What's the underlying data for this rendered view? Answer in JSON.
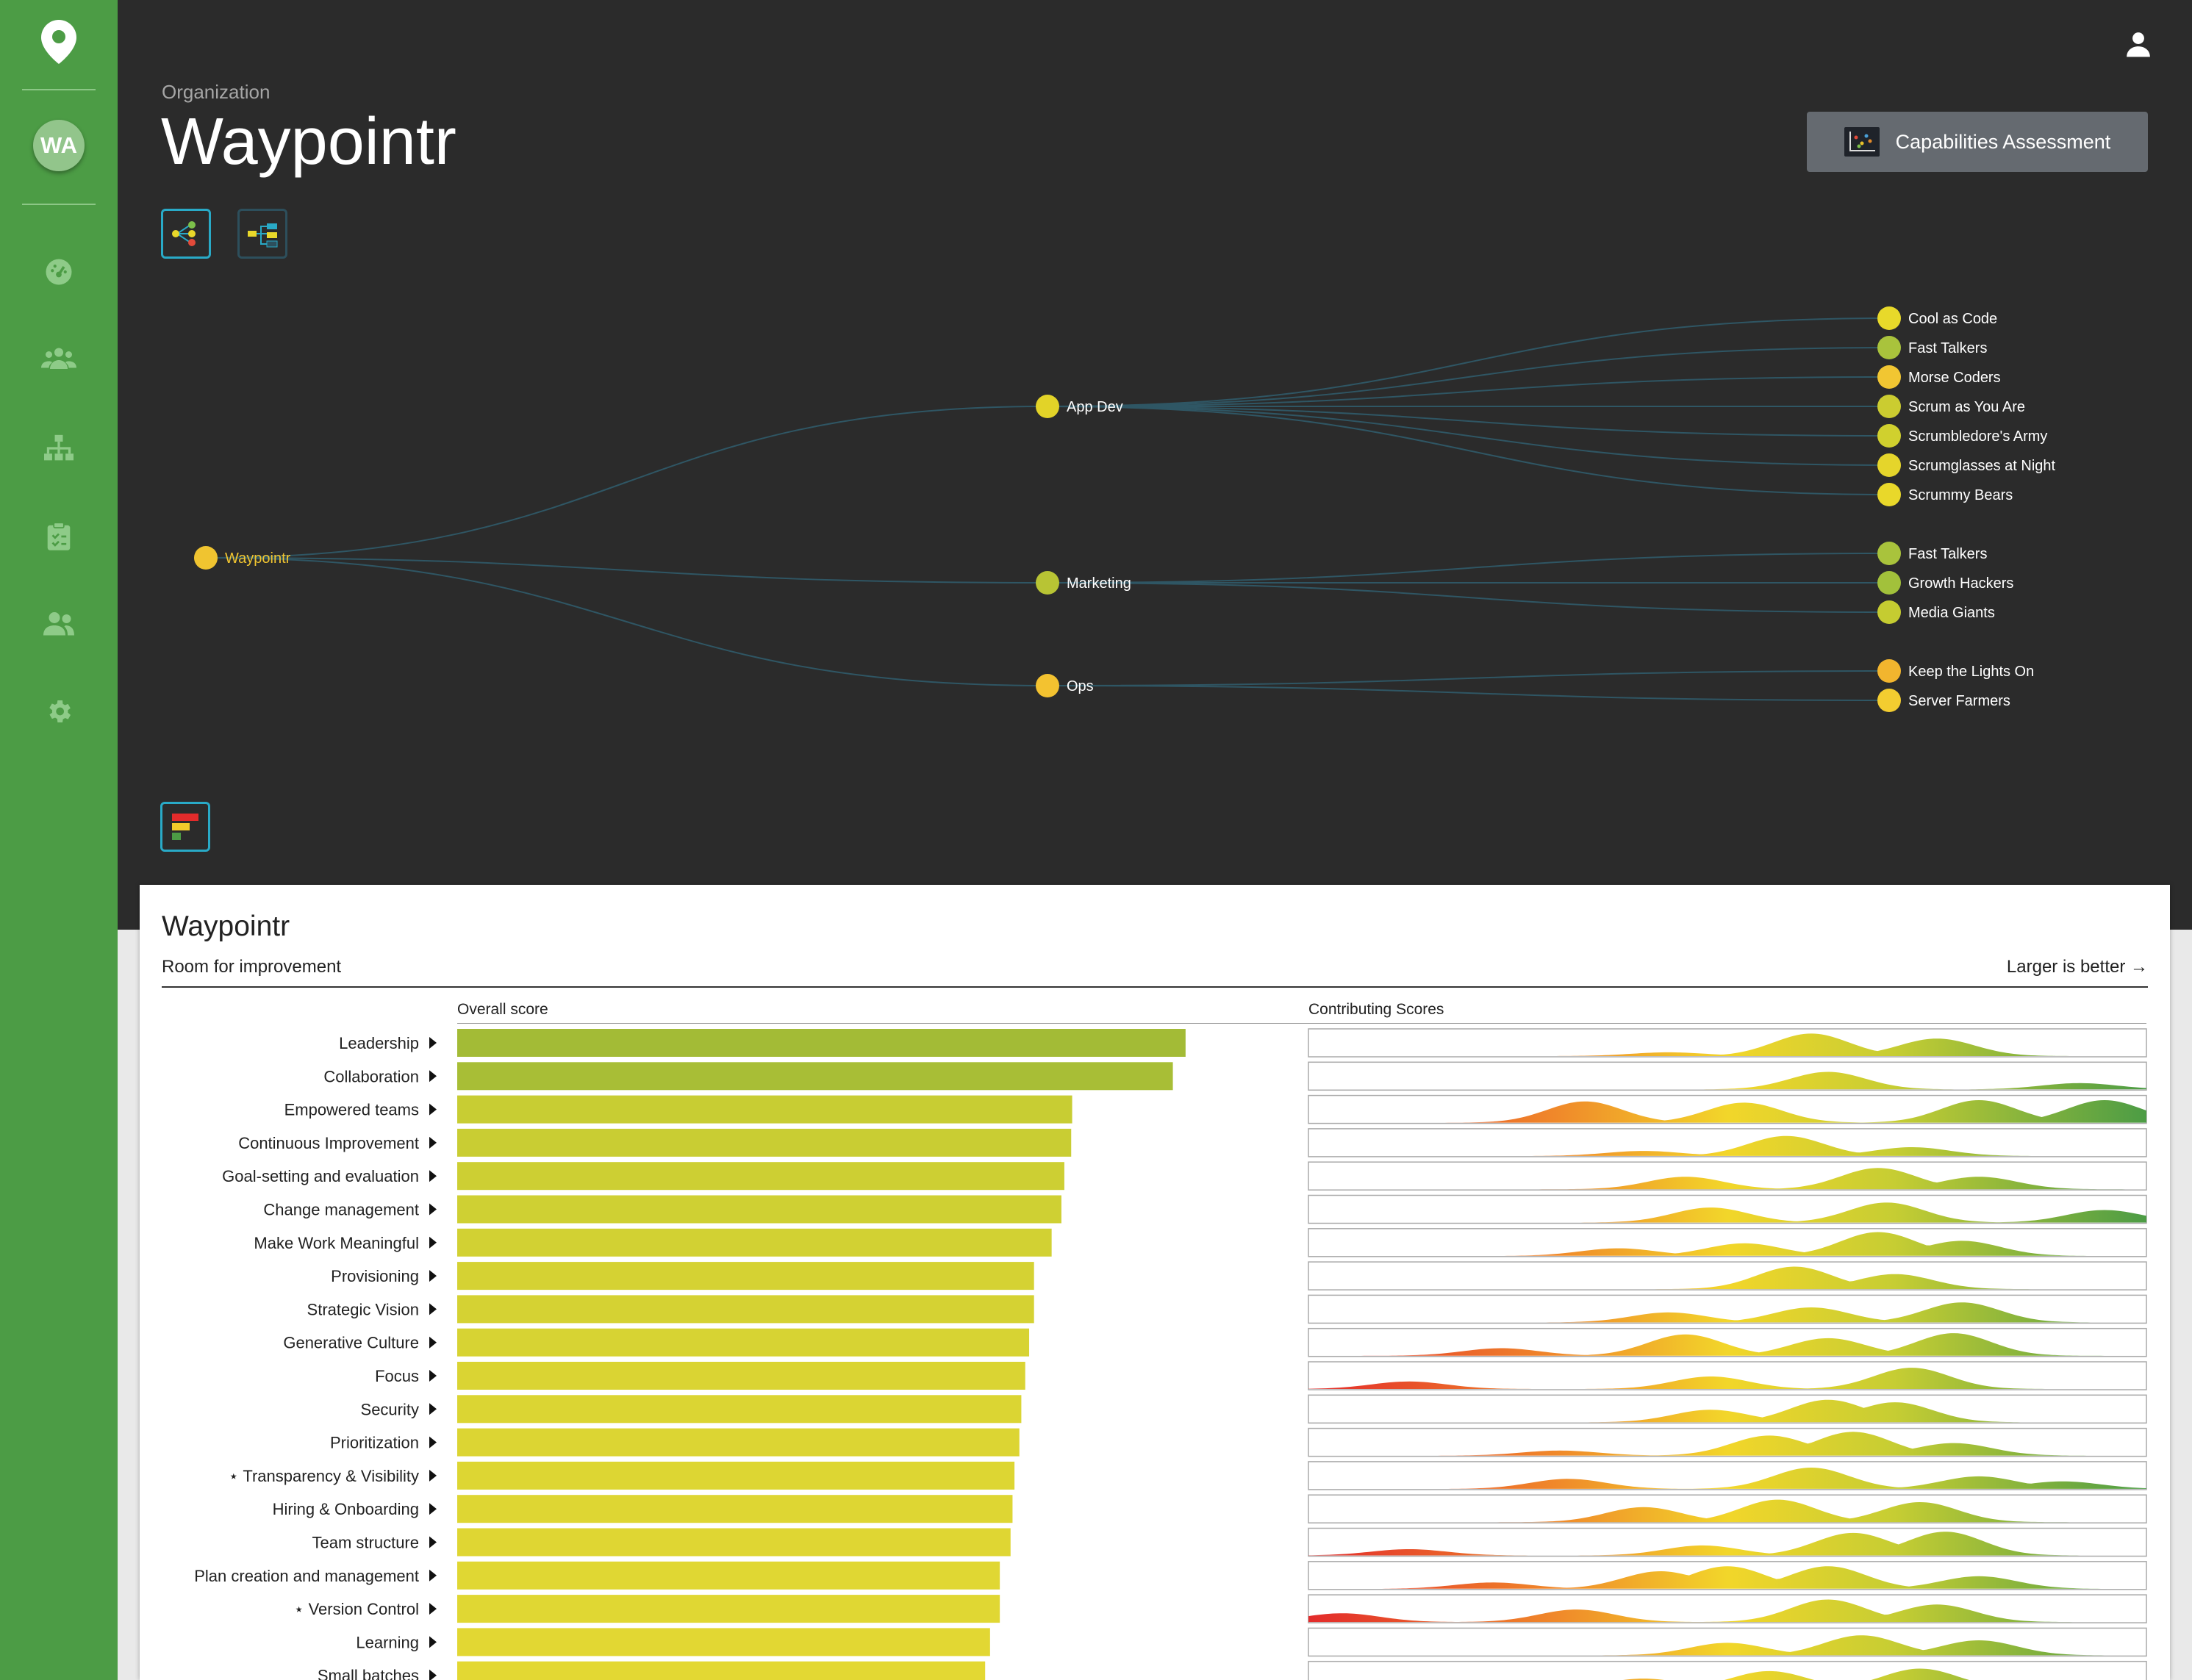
{
  "sidebar": {
    "avatar": "WA",
    "items": [
      {
        "icon": "location-pin-icon"
      },
      {
        "icon": "dashboard-icon"
      },
      {
        "icon": "groups-icon"
      },
      {
        "icon": "org-chart-icon"
      },
      {
        "icon": "assessment-clipboard-icon"
      },
      {
        "icon": "people-icon"
      },
      {
        "icon": "settings-gear-icon"
      }
    ],
    "color": "#4c9c45"
  },
  "header": {
    "breadcrumb": "Organization",
    "title": "Waypointr",
    "capabilities_button": "Capabilities Assessment",
    "user_icon": "person-icon"
  },
  "tree": {
    "root": {
      "label": "Waypointr",
      "color": "#f0c430"
    },
    "groups": [
      {
        "label": "App Dev",
        "color": "#e2d328",
        "teams": [
          {
            "label": "Cool as Code",
            "color": "#e8d92a"
          },
          {
            "label": "Fast Talkers",
            "color": "#a9c33c"
          },
          {
            "label": "Morse Coders",
            "color": "#f1c632"
          },
          {
            "label": "Scrum as You Are",
            "color": "#cbcc30"
          },
          {
            "label": "Scrumbledore's Army",
            "color": "#d0d02e"
          },
          {
            "label": "Scrumglasses at Night",
            "color": "#e5d52b"
          },
          {
            "label": "Scrummy Bears",
            "color": "#e9d82a"
          }
        ]
      },
      {
        "label": "Marketing",
        "color": "#b8c434",
        "teams": [
          {
            "label": "Fast Talkers",
            "color": "#a9c33c"
          },
          {
            "label": "Growth Hackers",
            "color": "#a2c13b"
          },
          {
            "label": "Media Giants",
            "color": "#c5cc31"
          }
        ]
      },
      {
        "label": "Ops",
        "color": "#f3c230",
        "teams": [
          {
            "label": "Keep the Lights On",
            "color": "#f2b52e"
          },
          {
            "label": "Server Farmers",
            "color": "#f3cd30"
          }
        ]
      }
    ]
  },
  "panel": {
    "title": "Waypointr",
    "subtitle": "Room for improvement",
    "hint": "Larger is better →",
    "overall_header": "Overall score",
    "contrib_header": "Contributing Scores"
  },
  "chart_data": {
    "type": "bar",
    "title": "Waypointr",
    "xlabel": "Overall score",
    "xlim": [
      0,
      1
    ],
    "categories": [
      "Leadership",
      "Collaboration",
      "Empowered teams",
      "Continuous Improvement",
      "Goal-setting and evaluation",
      "Change management",
      "Make Work Meaningful",
      "Provisioning",
      "Strategic Vision",
      "Generative Culture",
      "Focus",
      "Security",
      "Prioritization",
      "⋆ Transparency & Visibility",
      "Hiring & Onboarding",
      "Team structure",
      "Plan creation and management",
      "⋆ Version Control",
      "Learning",
      "Small batches"
    ],
    "values": [
      0.745,
      0.732,
      0.629,
      0.628,
      0.621,
      0.618,
      0.608,
      0.59,
      0.59,
      0.585,
      0.581,
      0.577,
      0.575,
      0.57,
      0.568,
      0.566,
      0.555,
      0.555,
      0.545,
      0.54
    ],
    "bar_colors": [
      "#a3bb36",
      "#a8be36",
      "#c8cd33",
      "#c9cd33",
      "#cdcf33",
      "#cfd033",
      "#d2d133",
      "#d5d233",
      "#d5d233",
      "#d7d333",
      "#dad433",
      "#dbd533",
      "#dcd533",
      "#ddd633",
      "#ded633",
      "#dfd633",
      "#e0d733",
      "#e0d733",
      "#e2d733",
      "#e3d833"
    ],
    "contributing": [
      [
        [
          0.43,
          0.15
        ],
        [
          0.6,
          0.9
        ],
        [
          0.75,
          0.7
        ]
      ],
      [
        [
          0.62,
          0.7
        ],
        [
          0.92,
          0.25
        ]
      ],
      [
        [
          0.33,
          0.85
        ],
        [
          0.52,
          0.8
        ],
        [
          0.8,
          0.9
        ],
        [
          0.95,
          0.9
        ]
      ],
      [
        [
          0.4,
          0.2
        ],
        [
          0.57,
          0.8
        ],
        [
          0.72,
          0.35
        ]
      ],
      [
        [
          0.45,
          0.5
        ],
        [
          0.68,
          0.85
        ],
        [
          0.8,
          0.5
        ]
      ],
      [
        [
          0.48,
          0.6
        ],
        [
          0.69,
          0.8
        ],
        [
          0.95,
          0.5
        ]
      ],
      [
        [
          0.37,
          0.3
        ],
        [
          0.52,
          0.5
        ],
        [
          0.68,
          0.95
        ],
        [
          0.78,
          0.6
        ]
      ],
      [
        [
          0.58,
          0.9
        ],
        [
          0.7,
          0.6
        ]
      ],
      [
        [
          0.43,
          0.4
        ],
        [
          0.6,
          0.6
        ],
        [
          0.78,
          0.8
        ]
      ],
      [
        [
          0.23,
          0.3
        ],
        [
          0.45,
          0.85
        ],
        [
          0.62,
          0.7
        ],
        [
          0.77,
          0.9
        ]
      ],
      [
        [
          0.12,
          0.3
        ],
        [
          0.48,
          0.5
        ],
        [
          0.72,
          0.85
        ]
      ],
      [
        [
          0.48,
          0.5
        ],
        [
          0.62,
          0.9
        ],
        [
          0.7,
          0.8
        ]
      ],
      [
        [
          0.3,
          0.2
        ],
        [
          0.55,
          0.8
        ],
        [
          0.65,
          0.95
        ],
        [
          0.77,
          0.5
        ]
      ],
      [
        [
          0.31,
          0.4
        ],
        [
          0.6,
          0.85
        ],
        [
          0.8,
          0.5
        ],
        [
          0.9,
          0.3
        ]
      ],
      [
        [
          0.4,
          0.6
        ],
        [
          0.56,
          0.9
        ],
        [
          0.73,
          0.8
        ]
      ],
      [
        [
          0.12,
          0.25
        ],
        [
          0.47,
          0.4
        ],
        [
          0.65,
          0.9
        ],
        [
          0.76,
          0.95
        ]
      ],
      [
        [
          0.22,
          0.25
        ],
        [
          0.42,
          0.7
        ],
        [
          0.5,
          0.9
        ],
        [
          0.62,
          0.9
        ],
        [
          0.8,
          0.5
        ]
      ],
      [
        [
          0.04,
          0.35
        ],
        [
          0.32,
          0.5
        ],
        [
          0.62,
          0.9
        ],
        [
          0.75,
          0.7
        ]
      ],
      [
        [
          0.5,
          0.5
        ],
        [
          0.66,
          0.8
        ],
        [
          0.8,
          0.6
        ]
      ],
      [
        [
          0.4,
          0.4
        ],
        [
          0.55,
          0.7
        ],
        [
          0.73,
          0.8
        ]
      ]
    ]
  }
}
